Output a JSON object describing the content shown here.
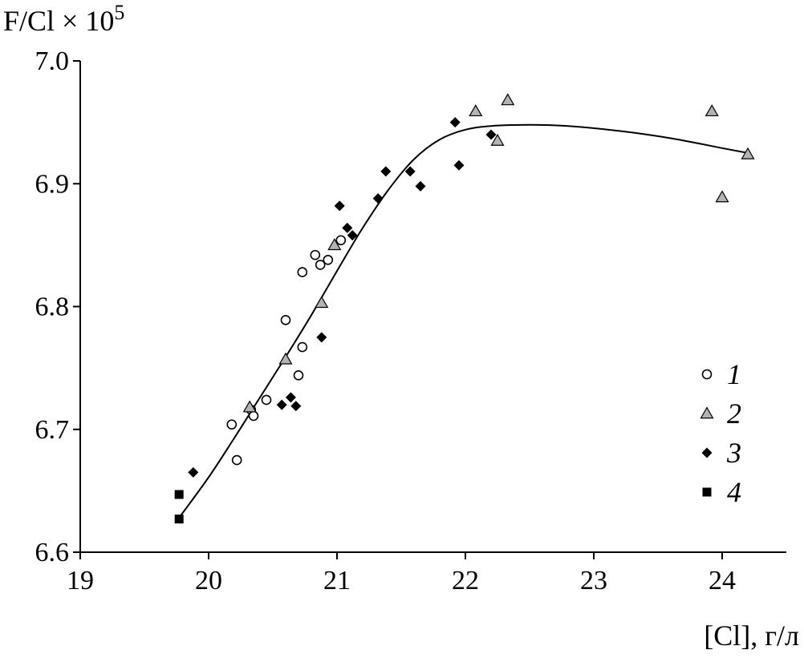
{
  "chart_data": {
    "type": "scatter",
    "ylabel": "F/Cl × 10",
    "ylabel_superscript": "5",
    "xlabel": "[Cl], г/л",
    "xlim": [
      19,
      24.5
    ],
    "ylim": [
      6.6,
      7.0
    ],
    "x_ticks": [
      "19",
      "20",
      "21",
      "22",
      "23",
      "24"
    ],
    "y_ticks": [
      "6.6",
      "6.7",
      "6.8",
      "6.9",
      "7.0"
    ],
    "grid": false,
    "legend_position": "right",
    "series": [
      {
        "name": "1",
        "marker": "circle-open",
        "color": "#000000",
        "points": [
          [
            20.18,
            6.704
          ],
          [
            20.22,
            6.675
          ],
          [
            20.33,
            6.716
          ],
          [
            20.35,
            6.711
          ],
          [
            20.45,
            6.724
          ],
          [
            20.6,
            6.789
          ],
          [
            20.7,
            6.744
          ],
          [
            20.73,
            6.767
          ],
          [
            20.73,
            6.828
          ],
          [
            20.83,
            6.842
          ],
          [
            20.87,
            6.834
          ],
          [
            20.93,
            6.838
          ],
          [
            21.03,
            6.854
          ]
        ]
      },
      {
        "name": "2",
        "marker": "triangle-gray",
        "color": "#b3b3b3",
        "points": [
          [
            20.32,
            6.718
          ],
          [
            20.6,
            6.757
          ],
          [
            20.88,
            6.803
          ],
          [
            20.98,
            6.85
          ],
          [
            22.08,
            6.959
          ],
          [
            22.25,
            6.935
          ],
          [
            22.33,
            6.968
          ],
          [
            23.92,
            6.959
          ],
          [
            24.0,
            6.889
          ],
          [
            24.2,
            6.924
          ]
        ]
      },
      {
        "name": "3",
        "marker": "diamond-filled",
        "color": "#000000",
        "points": [
          [
            19.88,
            6.665
          ],
          [
            20.57,
            6.72
          ],
          [
            20.64,
            6.726
          ],
          [
            20.68,
            6.719
          ],
          [
            20.88,
            6.775
          ],
          [
            21.02,
            6.882
          ],
          [
            21.08,
            6.864
          ],
          [
            21.12,
            6.858
          ],
          [
            21.32,
            6.888
          ],
          [
            21.38,
            6.91
          ],
          [
            21.57,
            6.91
          ],
          [
            21.65,
            6.898
          ],
          [
            21.92,
            6.95
          ],
          [
            21.95,
            6.915
          ],
          [
            22.2,
            6.94
          ]
        ]
      },
      {
        "name": "4",
        "marker": "square-filled",
        "color": "#000000",
        "points": [
          [
            19.77,
            6.647
          ],
          [
            19.77,
            6.627
          ]
        ]
      }
    ],
    "trend_line": [
      [
        19.77,
        6.628
      ],
      [
        20.0,
        6.661
      ],
      [
        20.2,
        6.693
      ],
      [
        20.4,
        6.726
      ],
      [
        20.6,
        6.759
      ],
      [
        20.8,
        6.793
      ],
      [
        21.0,
        6.829
      ],
      [
        21.2,
        6.864
      ],
      [
        21.4,
        6.895
      ],
      [
        21.6,
        6.92
      ],
      [
        21.8,
        6.936
      ],
      [
        22.0,
        6.944
      ],
      [
        22.2,
        6.947
      ],
      [
        22.5,
        6.948
      ],
      [
        22.8,
        6.947
      ],
      [
        23.2,
        6.943
      ],
      [
        23.6,
        6.937
      ],
      [
        24.0,
        6.929
      ],
      [
        24.2,
        6.925
      ]
    ]
  }
}
